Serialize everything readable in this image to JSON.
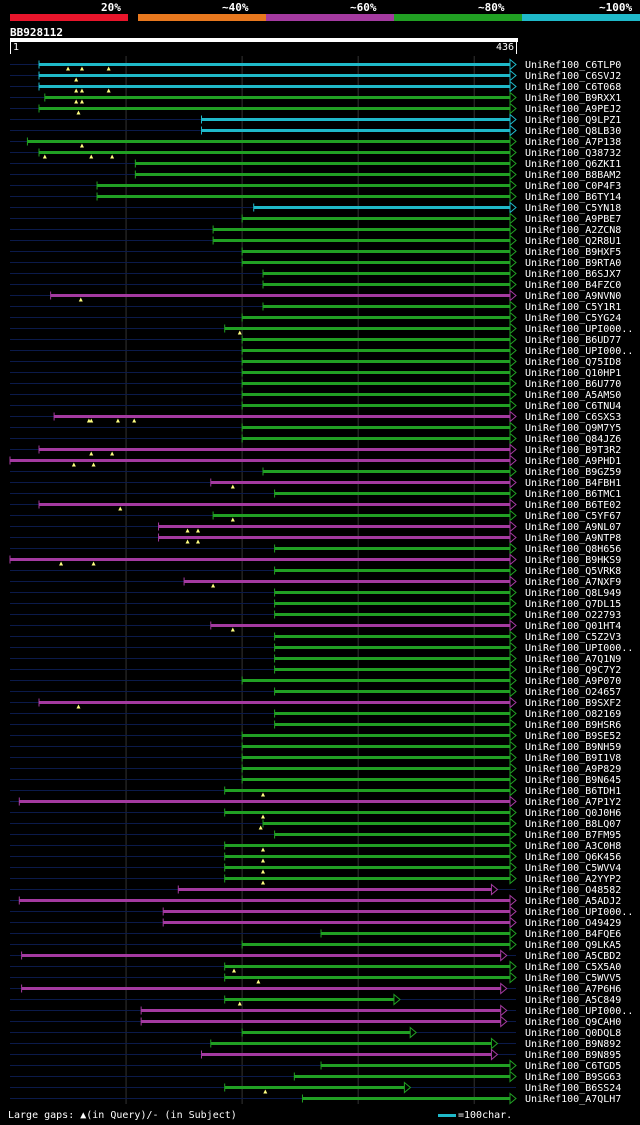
{
  "chart_data": {
    "type": "alignment-hits",
    "query_name": "BB928112",
    "query_start_label": "1",
    "query_end_label": "436",
    "query_length": 436,
    "identity_legend": [
      {
        "label": "20%",
        "color": "#e8152b"
      },
      {
        "label": "~40%",
        "color": "#e8781e"
      },
      {
        "label": "~60%",
        "color": "#a43aa0"
      },
      {
        "label": "~80%",
        "color": "#21a023"
      },
      {
        "label": "~100%",
        "color": "#1fb9c9"
      }
    ],
    "footer_left": "Large gaps: ▲(in Query)/- (in Subject)",
    "footer_right": "=100char.",
    "hits": [
      {
        "name": "UniRef100_C6TLP0",
        "start": 25,
        "end": 436,
        "cls": "c",
        "arrow": true,
        "tri": [
          50,
          62,
          85
        ]
      },
      {
        "name": "UniRef100_C6SVJ2",
        "start": 25,
        "end": 436,
        "cls": "c",
        "arrow": true,
        "tri": [
          57
        ]
      },
      {
        "name": "UniRef100_C6T068",
        "start": 25,
        "end": 436,
        "cls": "c",
        "arrow": true,
        "tri": [
          57,
          62,
          85
        ]
      },
      {
        "name": "UniRef100_B9RXX1",
        "start": 30,
        "end": 436,
        "cls": "g",
        "arrow": true,
        "tri": [
          57,
          62
        ]
      },
      {
        "name": "UniRef100_A9PEJ2",
        "start": 25,
        "end": 436,
        "cls": "g",
        "arrow": true,
        "tri": [
          59
        ]
      },
      {
        "name": "UniRef100_Q9LPZ1",
        "start": 165,
        "end": 436,
        "cls": "c",
        "arrow": true,
        "tri": []
      },
      {
        "name": "UniRef100_Q8LB30",
        "start": 165,
        "end": 436,
        "cls": "c",
        "arrow": true,
        "tri": []
      },
      {
        "name": "UniRef100_A7P138",
        "start": 15,
        "end": 436,
        "cls": "g",
        "arrow": true,
        "tri": [
          62
        ]
      },
      {
        "name": "UniRef100_Q38732",
        "start": 25,
        "end": 436,
        "cls": "g",
        "arrow": true,
        "tri": [
          30,
          70,
          88
        ]
      },
      {
        "name": "UniRef100_Q6ZKI1",
        "start": 108,
        "end": 436,
        "cls": "g",
        "arrow": true,
        "tri": []
      },
      {
        "name": "UniRef100_B8BAM2",
        "start": 108,
        "end": 436,
        "cls": "g",
        "arrow": true,
        "tri": []
      },
      {
        "name": "UniRef100_C0P4F3",
        "start": 75,
        "end": 436,
        "cls": "g",
        "arrow": true,
        "tri": []
      },
      {
        "name": "UniRef100_B6TY14",
        "start": 75,
        "end": 436,
        "cls": "g",
        "arrow": true,
        "tri": []
      },
      {
        "name": "UniRef100_C5YN18",
        "start": 210,
        "end": 436,
        "cls": "c",
        "arrow": true,
        "tri": []
      },
      {
        "name": "UniRef100_A9PBE7",
        "start": 200,
        "end": 436,
        "cls": "g",
        "arrow": true,
        "tri": []
      },
      {
        "name": "UniRef100_A2ZCN8",
        "start": 175,
        "end": 436,
        "cls": "g",
        "arrow": true,
        "tri": []
      },
      {
        "name": "UniRef100_Q2R8U1",
        "start": 175,
        "end": 436,
        "cls": "g",
        "arrow": true,
        "tri": []
      },
      {
        "name": "UniRef100_B9HXF5",
        "start": 200,
        "end": 436,
        "cls": "g",
        "arrow": true,
        "tri": []
      },
      {
        "name": "UniRef100_B9RTA0",
        "start": 200,
        "end": 436,
        "cls": "g",
        "arrow": true,
        "tri": []
      },
      {
        "name": "UniRef100_B6SJX7",
        "start": 218,
        "end": 436,
        "cls": "g",
        "arrow": true,
        "tri": []
      },
      {
        "name": "UniRef100_B4FZC0",
        "start": 218,
        "end": 436,
        "cls": "g",
        "arrow": true,
        "tri": []
      },
      {
        "name": "UniRef100_A9NVN0",
        "start": 35,
        "end": 436,
        "cls": "m",
        "arrow": true,
        "tri": [
          61
        ]
      },
      {
        "name": "UniRef100_C5Y1R1",
        "start": 218,
        "end": 436,
        "cls": "g",
        "arrow": true,
        "tri": []
      },
      {
        "name": "UniRef100_C5YG24",
        "start": 200,
        "end": 436,
        "cls": "g",
        "arrow": true,
        "tri": []
      },
      {
        "name": "UniRef100_UPI000..",
        "start": 185,
        "end": 436,
        "cls": "g",
        "arrow": true,
        "tri": [
          198
        ]
      },
      {
        "name": "UniRef100_B6UD77",
        "start": 200,
        "end": 436,
        "cls": "g",
        "arrow": true,
        "tri": []
      },
      {
        "name": "UniRef100_UPI000..",
        "start": 200,
        "end": 436,
        "cls": "g",
        "arrow": true,
        "tri": []
      },
      {
        "name": "UniRef100_Q75ID8",
        "start": 200,
        "end": 436,
        "cls": "g",
        "arrow": true,
        "tri": []
      },
      {
        "name": "UniRef100_Q10HP1",
        "start": 200,
        "end": 436,
        "cls": "g",
        "arrow": true,
        "tri": []
      },
      {
        "name": "UniRef100_B6U770",
        "start": 200,
        "end": 436,
        "cls": "g",
        "arrow": true,
        "tri": []
      },
      {
        "name": "UniRef100_A5AMS0",
        "start": 200,
        "end": 436,
        "cls": "g",
        "arrow": true,
        "tri": []
      },
      {
        "name": "UniRef100_C6TNU4",
        "start": 200,
        "end": 436,
        "cls": "g",
        "arrow": true,
        "tri": []
      },
      {
        "name": "UniRef100_C6SXS3",
        "start": 38,
        "end": 436,
        "cls": "m",
        "arrow": true,
        "tri": [
          68,
          70,
          93,
          107
        ]
      },
      {
        "name": "UniRef100_Q9M7Y5",
        "start": 200,
        "end": 436,
        "cls": "g",
        "arrow": true,
        "tri": []
      },
      {
        "name": "UniRef100_Q84JZ6",
        "start": 200,
        "end": 436,
        "cls": "g",
        "arrow": true,
        "tri": []
      },
      {
        "name": "UniRef100_B9T3R2",
        "start": 25,
        "end": 436,
        "cls": "m",
        "arrow": true,
        "tri": [
          70,
          88
        ]
      },
      {
        "name": "UniRef100_A9PHD1",
        "start": 0,
        "end": 436,
        "cls": "m",
        "arrow": true,
        "tri": [
          55,
          72
        ]
      },
      {
        "name": "UniRef100_B9GZ59",
        "start": 218,
        "end": 436,
        "cls": "g",
        "arrow": true,
        "tri": []
      },
      {
        "name": "UniRef100_B4FBH1",
        "start": 173,
        "end": 436,
        "cls": "m",
        "arrow": true,
        "tri": [
          192
        ]
      },
      {
        "name": "UniRef100_B6TMC1",
        "start": 228,
        "end": 436,
        "cls": "g",
        "arrow": true,
        "tri": []
      },
      {
        "name": "UniRef100_B6TE02",
        "start": 25,
        "end": 436,
        "cls": "m",
        "arrow": true,
        "tri": [
          95
        ]
      },
      {
        "name": "UniRef100_C5YF67",
        "start": 175,
        "end": 436,
        "cls": "g",
        "arrow": true,
        "tri": [
          192
        ]
      },
      {
        "name": "UniRef100_A9NL07",
        "start": 128,
        "end": 436,
        "cls": "m",
        "arrow": true,
        "tri": [
          153,
          162
        ]
      },
      {
        "name": "UniRef100_A9NTP8",
        "start": 128,
        "end": 436,
        "cls": "m",
        "arrow": true,
        "tri": [
          153,
          162
        ]
      },
      {
        "name": "UniRef100_Q8H656",
        "start": 228,
        "end": 436,
        "cls": "g",
        "arrow": true,
        "tri": []
      },
      {
        "name": "UniRef100_B9HKS9",
        "start": 0,
        "end": 436,
        "cls": "m",
        "arrow": true,
        "tri": [
          44,
          72
        ]
      },
      {
        "name": "UniRef100_Q5VRK8",
        "start": 228,
        "end": 436,
        "cls": "g",
        "arrow": true,
        "tri": []
      },
      {
        "name": "UniRef100_A7NXF9",
        "start": 150,
        "end": 436,
        "cls": "m",
        "arrow": true,
        "tri": [
          175
        ]
      },
      {
        "name": "UniRef100_Q8L949",
        "start": 228,
        "end": 436,
        "cls": "g",
        "arrow": true,
        "tri": []
      },
      {
        "name": "UniRef100_Q7DL15",
        "start": 228,
        "end": 436,
        "cls": "g",
        "arrow": true,
        "tri": []
      },
      {
        "name": "UniRef100_O22793",
        "start": 228,
        "end": 436,
        "cls": "g",
        "arrow": true,
        "tri": []
      },
      {
        "name": "UniRef100_Q01HT4",
        "start": 173,
        "end": 436,
        "cls": "m",
        "arrow": true,
        "tri": [
          192
        ]
      },
      {
        "name": "UniRef100_C5Z2V3",
        "start": 228,
        "end": 436,
        "cls": "g",
        "arrow": true,
        "tri": []
      },
      {
        "name": "UniRef100_UPI000..",
        "start": 228,
        "end": 436,
        "cls": "g",
        "arrow": true,
        "tri": []
      },
      {
        "name": "UniRef100_A7Q1N9",
        "start": 228,
        "end": 436,
        "cls": "g",
        "arrow": true,
        "tri": []
      },
      {
        "name": "UniRef100_Q9C7Y2",
        "start": 228,
        "end": 436,
        "cls": "g",
        "arrow": true,
        "tri": []
      },
      {
        "name": "UniRef100_A9P070",
        "start": 200,
        "end": 436,
        "cls": "g",
        "arrow": true,
        "tri": []
      },
      {
        "name": "UniRef100_O24657",
        "start": 228,
        "end": 436,
        "cls": "g",
        "arrow": true,
        "tri": []
      },
      {
        "name": "UniRef100_B9SXF2",
        "start": 25,
        "end": 436,
        "cls": "m",
        "arrow": true,
        "tri": [
          59
        ]
      },
      {
        "name": "UniRef100_O82169",
        "start": 228,
        "end": 436,
        "cls": "g",
        "arrow": true,
        "tri": []
      },
      {
        "name": "UniRef100_B9HSR6",
        "start": 228,
        "end": 436,
        "cls": "g",
        "arrow": true,
        "tri": []
      },
      {
        "name": "UniRef100_B9SE52",
        "start": 200,
        "end": 436,
        "cls": "g",
        "arrow": true,
        "tri": []
      },
      {
        "name": "UniRef100_B9NH59",
        "start": 200,
        "end": 436,
        "cls": "g",
        "arrow": true,
        "tri": []
      },
      {
        "name": "UniRef100_B9I1V8",
        "start": 200,
        "end": 436,
        "cls": "g",
        "arrow": true,
        "tri": []
      },
      {
        "name": "UniRef100_A9P829",
        "start": 200,
        "end": 436,
        "cls": "g",
        "arrow": true,
        "tri": []
      },
      {
        "name": "UniRef100_B9N645",
        "start": 200,
        "end": 436,
        "cls": "g",
        "arrow": true,
        "tri": []
      },
      {
        "name": "UniRef100_B6TDH1",
        "start": 185,
        "end": 436,
        "cls": "g",
        "arrow": true,
        "tri": [
          218
        ]
      },
      {
        "name": "UniRef100_A7P1Y2",
        "start": 8,
        "end": 436,
        "cls": "m",
        "arrow": true,
        "tri": []
      },
      {
        "name": "UniRef100_Q0J0H6",
        "start": 185,
        "end": 436,
        "cls": "g",
        "arrow": true,
        "tri": [
          218
        ]
      },
      {
        "name": "UniRef100_B8LQ07",
        "start": 218,
        "end": 436,
        "cls": "g",
        "arrow": true,
        "tri": [
          216
        ]
      },
      {
        "name": "UniRef100_B7FM95",
        "start": 228,
        "end": 436,
        "cls": "g",
        "arrow": true,
        "tri": []
      },
      {
        "name": "UniRef100_A3C0H8",
        "start": 185,
        "end": 436,
        "cls": "g",
        "arrow": true,
        "tri": [
          218
        ]
      },
      {
        "name": "UniRef100_Q6K456",
        "start": 185,
        "end": 436,
        "cls": "g",
        "arrow": true,
        "tri": [
          218
        ]
      },
      {
        "name": "UniRef100_C5WVV4",
        "start": 185,
        "end": 436,
        "cls": "g",
        "arrow": true,
        "tri": [
          218
        ]
      },
      {
        "name": "UniRef100_A2YYP2",
        "start": 185,
        "end": 436,
        "cls": "g",
        "arrow": true,
        "tri": [
          218
        ]
      },
      {
        "name": "UniRef100_O48582",
        "start": 145,
        "end": 420,
        "cls": "m",
        "arrow": true,
        "tri": []
      },
      {
        "name": "UniRef100_A5ADJ2",
        "start": 8,
        "end": 436,
        "cls": "m",
        "arrow": true,
        "tri": []
      },
      {
        "name": "UniRef100_UPI000..",
        "start": 132,
        "end": 436,
        "cls": "m",
        "arrow": true,
        "tri": []
      },
      {
        "name": "UniRef100_O49429",
        "start": 132,
        "end": 436,
        "cls": "m",
        "arrow": true,
        "tri": []
      },
      {
        "name": "UniRef100_B4FQE6",
        "start": 268,
        "end": 436,
        "cls": "g",
        "arrow": true,
        "tri": []
      },
      {
        "name": "UniRef100_Q9LKA5",
        "start": 200,
        "end": 436,
        "cls": "g",
        "arrow": true,
        "tri": []
      },
      {
        "name": "UniRef100_A5CBD2",
        "start": 10,
        "end": 428,
        "cls": "m",
        "arrow": true,
        "tri": []
      },
      {
        "name": "UniRef100_C5X5A0",
        "start": 185,
        "end": 436,
        "cls": "g",
        "arrow": true,
        "tri": [
          193
        ]
      },
      {
        "name": "UniRef100_C5WVV5",
        "start": 185,
        "end": 436,
        "cls": "g",
        "arrow": true,
        "tri": [
          214
        ]
      },
      {
        "name": "UniRef100_A7P6H6",
        "start": 10,
        "end": 428,
        "cls": "m",
        "arrow": true,
        "tri": []
      },
      {
        "name": "UniRef100_A5C849",
        "start": 185,
        "end": 336,
        "cls": "g",
        "arrow": true,
        "tri": [
          198
        ]
      },
      {
        "name": "UniRef100_UPI000..",
        "start": 113,
        "end": 428,
        "cls": "m",
        "arrow": true,
        "tri": []
      },
      {
        "name": "UniRef100_Q9CAH0",
        "start": 113,
        "end": 428,
        "cls": "m",
        "arrow": true,
        "tri": []
      },
      {
        "name": "UniRef100_Q0DQL8",
        "start": 200,
        "end": 350,
        "cls": "g",
        "arrow": true,
        "tri": []
      },
      {
        "name": "UniRef100_B9N892",
        "start": 173,
        "end": 420,
        "cls": "g",
        "arrow": true,
        "tri": []
      },
      {
        "name": "UniRef100_B9N895",
        "start": 165,
        "end": 420,
        "cls": "m",
        "arrow": true,
        "tri": []
      },
      {
        "name": "UniRef100_C6TGD5",
        "start": 268,
        "end": 436,
        "cls": "g",
        "arrow": true,
        "tri": []
      },
      {
        "name": "UniRef100_B9SG63",
        "start": 245,
        "end": 436,
        "cls": "g",
        "arrow": true,
        "tri": []
      },
      {
        "name": "UniRef100_B6SS24",
        "start": 185,
        "end": 345,
        "cls": "g",
        "arrow": true,
        "tri": [
          220
        ]
      },
      {
        "name": "UniRef100_A7QLH7",
        "start": 252,
        "end": 436,
        "cls": "g",
        "arrow": true,
        "tri": []
      }
    ]
  }
}
